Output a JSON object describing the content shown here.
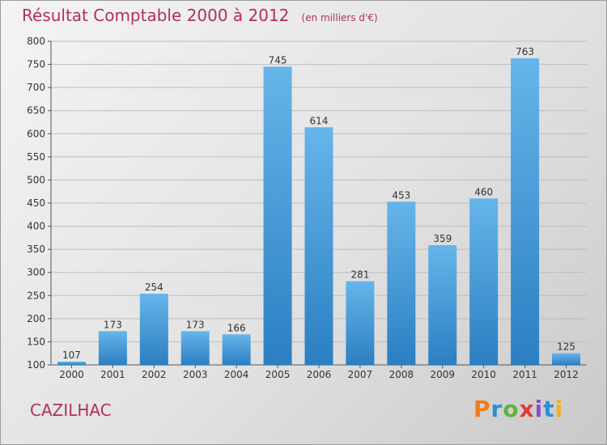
{
  "header": {
    "title": "Résultat Comptable 2000 à 2012",
    "subtitle": "(en milliers d'€)"
  },
  "footer": {
    "commune": "CAZILHAC",
    "logo": {
      "letters": [
        "P",
        "r",
        "o",
        "x",
        "i",
        "t",
        "i"
      ],
      "colors": [
        "#f07c1a",
        "#2e8fd8",
        "#5fb33a",
        "#e03a3a",
        "#8a4fc7",
        "#2e8fd8",
        "#f0b41a"
      ]
    }
  },
  "colors": {
    "bar_top": "#66b5ea",
    "bar_bottom": "#2b7fc2",
    "title": "#b0305a",
    "grid": "#bdbdbd"
  },
  "chart_data": {
    "type": "bar",
    "title": "Résultat Comptable 2000 à 2012",
    "subtitle": "(en milliers d'€)",
    "xlabel": "",
    "ylabel": "",
    "categories": [
      "2000",
      "2001",
      "2002",
      "2003",
      "2004",
      "2005",
      "2006",
      "2007",
      "2008",
      "2009",
      "2010",
      "2011",
      "2012"
    ],
    "values": [
      107,
      173,
      254,
      173,
      166,
      745,
      614,
      281,
      453,
      359,
      460,
      763,
      125
    ],
    "ylim": [
      100,
      800
    ],
    "yticks": [
      100,
      150,
      200,
      250,
      300,
      350,
      400,
      450,
      500,
      550,
      600,
      650,
      700,
      750,
      800
    ],
    "grid": true,
    "data_labels": true
  }
}
